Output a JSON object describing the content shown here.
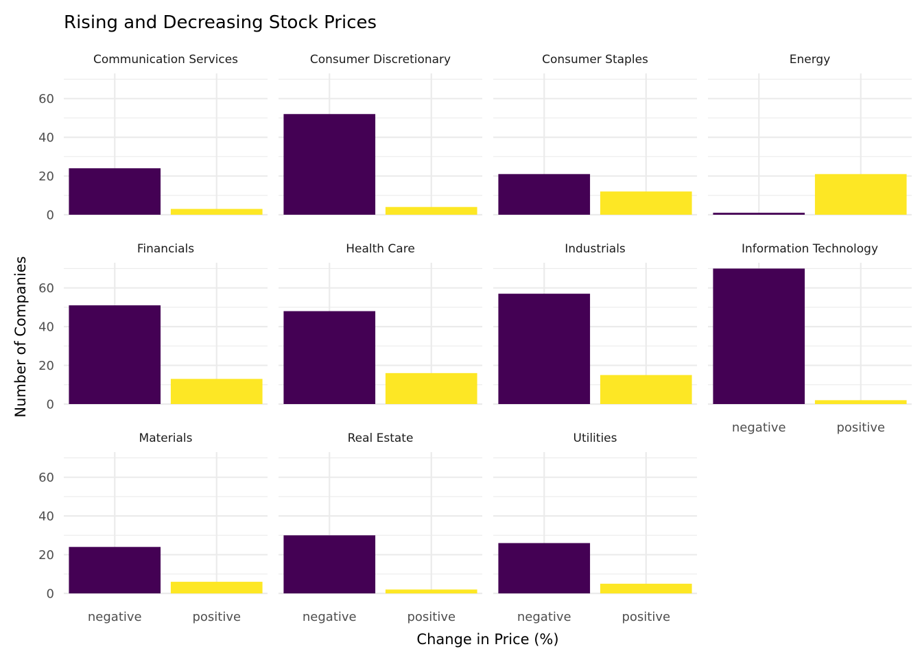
{
  "chart_data": {
    "type": "bar",
    "title": "Rising and Decreasing Stock Prices",
    "xlabel": "Change in Price (%)",
    "ylabel": "Number of Companies",
    "categories": [
      "negative",
      "positive"
    ],
    "ylim": [
      0,
      73
    ],
    "yticks": [
      0,
      20,
      40,
      60
    ],
    "yticks_labels": [
      "0",
      "20",
      "40",
      "60"
    ],
    "grid": true,
    "legend": "none",
    "colors": {
      "negative": "#440154",
      "positive": "#FDE725"
    },
    "facets": [
      {
        "name": "Communication Services",
        "values": [
          24,
          3
        ]
      },
      {
        "name": "Consumer Discretionary",
        "values": [
          52,
          4
        ]
      },
      {
        "name": "Consumer Staples",
        "values": [
          21,
          12
        ]
      },
      {
        "name": "Energy",
        "values": [
          1,
          21
        ]
      },
      {
        "name": "Financials",
        "values": [
          51,
          13
        ]
      },
      {
        "name": "Health Care",
        "values": [
          48,
          16
        ]
      },
      {
        "name": "Industrials",
        "values": [
          57,
          15
        ]
      },
      {
        "name": "Information Technology",
        "values": [
          70,
          2
        ]
      },
      {
        "name": "Materials",
        "values": [
          24,
          6
        ]
      },
      {
        "name": "Real Estate",
        "values": [
          30,
          2
        ]
      },
      {
        "name": "Utilities",
        "values": [
          26,
          5
        ]
      }
    ]
  }
}
